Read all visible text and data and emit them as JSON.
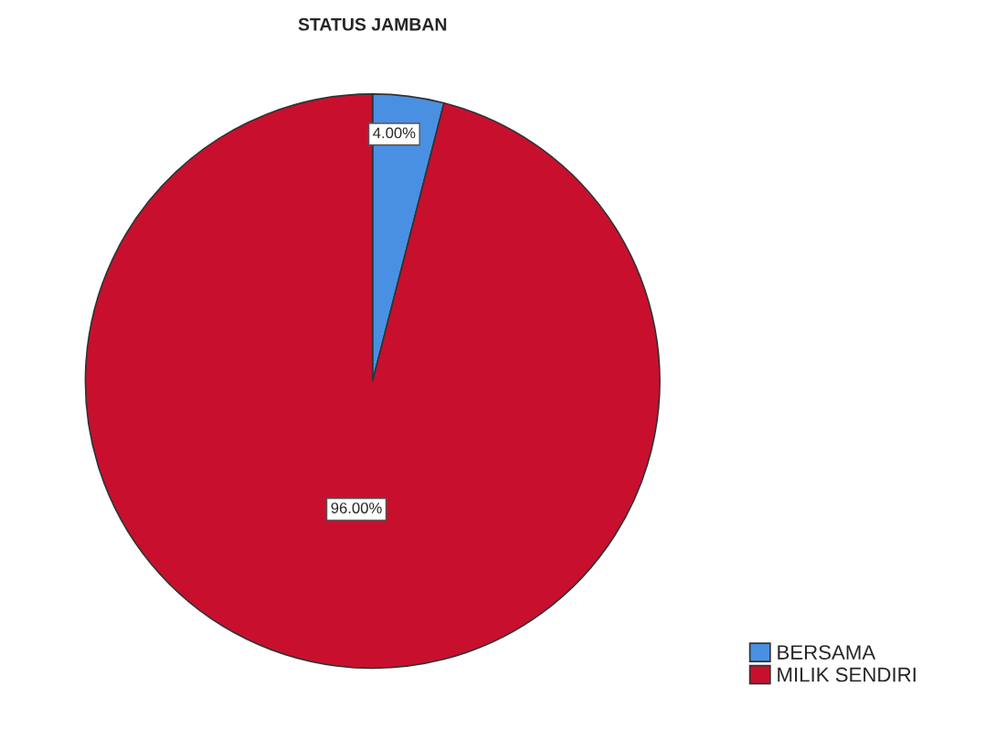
{
  "chart_data": {
    "type": "pie",
    "title": "STATUS JAMBAN",
    "categories": [
      "BERSAMA",
      "MILIK SENDIRI"
    ],
    "values": [
      4.0,
      96.0
    ],
    "colors": [
      "#4a90e2",
      "#c8102e"
    ],
    "value_labels": [
      "4.00%",
      "96.00%"
    ],
    "legend": "bottom right"
  }
}
